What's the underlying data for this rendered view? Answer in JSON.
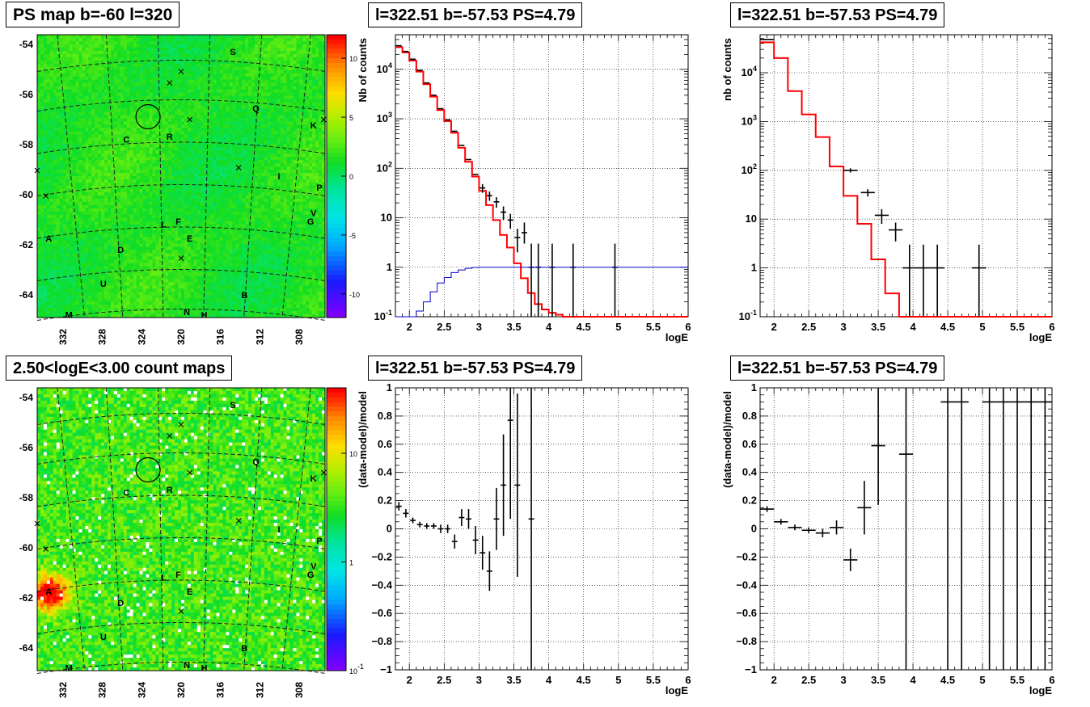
{
  "titles": {
    "map1": "PS map b=-60 l=320",
    "map2": "2.50<logE<3.00 count maps",
    "spec_full": "l=322.51 b=-57.53 PS=4.79",
    "spec_binned": "l=322.51 b=-57.53 PS=4.79",
    "res_full": "l=322.51 b=-57.53 PS=4.79",
    "res_binned": "l=322.51 b=-57.53 PS=4.79"
  },
  "chart_data": [
    {
      "type": "heatmap",
      "title": "PS map b=-60 l=320",
      "ylabel_ticks": [
        "-54",
        "-56",
        "-58",
        "-60",
        "-62",
        "-64"
      ],
      "xlabel_ticks": [
        "332",
        "328",
        "324",
        "320",
        "316",
        "312",
        "308"
      ],
      "colorbar_ticks": [
        "10",
        "5",
        "0",
        "-5",
        "-10"
      ],
      "colorbar_range": [
        -12,
        12
      ],
      "source_labels": [
        {
          "label": "S"
        },
        {
          "label": "Q"
        },
        {
          "label": "K"
        },
        {
          "label": "C"
        },
        {
          "label": "R"
        },
        {
          "label": "I"
        },
        {
          "label": "P"
        },
        {
          "label": "V"
        },
        {
          "label": "G"
        },
        {
          "label": "L"
        },
        {
          "label": "F"
        },
        {
          "label": "A"
        },
        {
          "label": "E"
        },
        {
          "label": "D"
        },
        {
          "label": "U"
        },
        {
          "label": "B"
        },
        {
          "label": "N"
        },
        {
          "label": "H"
        },
        {
          "label": "M"
        }
      ]
    },
    {
      "type": "line",
      "title": "l=322.51 b=-57.53 PS=4.79",
      "xlabel": "logE",
      "ylabel": "Nb of counts",
      "xlim": [
        1.8,
        6
      ],
      "ylim": [
        0.1,
        50000
      ],
      "ylog": true,
      "grid": true,
      "x_ticks": [
        "2",
        "2.5",
        "3",
        "3.5",
        "4",
        "4.5",
        "5",
        "5.5",
        "6"
      ],
      "y_ticks": [
        "10^{-1}",
        "1",
        "10",
        "10^{2}",
        "10^{3}",
        "10^{4}"
      ],
      "series": [
        {
          "role": "model-red-step",
          "color": "#ff0000",
          "edges": [
            1.8,
            1.9,
            2.0,
            2.1,
            2.2,
            2.3,
            2.4,
            2.5,
            2.6,
            2.7,
            2.8,
            2.9,
            3.0,
            3.1,
            3.2,
            3.3,
            3.4,
            3.5,
            3.6,
            3.7,
            3.8,
            3.9,
            4.0,
            4.1,
            4.2,
            4.3,
            6.0
          ],
          "values": [
            28000,
            22000,
            15000,
            9000,
            5000,
            2800,
            1500,
            900,
            520,
            260,
            135,
            68,
            35,
            18,
            9,
            4.5,
            2.5,
            1.2,
            0.6,
            0.3,
            0.18,
            0.14,
            0.12,
            0.11,
            0.1,
            0.1
          ]
        },
        {
          "role": "data-points",
          "color": "#000000",
          "x": [
            1.85,
            1.95,
            2.05,
            2.15,
            2.25,
            2.35,
            2.45,
            2.55,
            2.65,
            2.75,
            2.85,
            2.95,
            3.05,
            3.15,
            3.25,
            3.35,
            3.45,
            3.55,
            3.65,
            3.75,
            3.85,
            4.05,
            4.35,
            4.95
          ],
          "y": [
            30000,
            23000,
            16000,
            9500,
            5300,
            3000,
            1600,
            950,
            560,
            290,
            150,
            75,
            40,
            28,
            21,
            13,
            9,
            4,
            5,
            1,
            1,
            1,
            1,
            1
          ],
          "yerr_lo": [
            0,
            0,
            0,
            0,
            0,
            0,
            0,
            0,
            0,
            0,
            0,
            0,
            8,
            6,
            5,
            4,
            3,
            2,
            2,
            0.9,
            0.9,
            0.9,
            0.9,
            0.9
          ],
          "yerr_hi": [
            0,
            0,
            0,
            0,
            0,
            0,
            0,
            0,
            0,
            0,
            0,
            0,
            8,
            6,
            5,
            4,
            3,
            2,
            3,
            2,
            2,
            2,
            2,
            2
          ]
        },
        {
          "role": "efficiency-blue-step",
          "color": "#0000cc",
          "edges": [
            1.8,
            2.0,
            2.1,
            2.2,
            2.3,
            2.4,
            2.5,
            2.6,
            2.7,
            2.8,
            2.9,
            3.0,
            3.1,
            6.0
          ],
          "values": [
            0.1,
            0.1,
            0.13,
            0.2,
            0.32,
            0.48,
            0.62,
            0.78,
            0.88,
            0.95,
            0.99,
            1.0,
            1.0
          ]
        }
      ]
    },
    {
      "type": "line",
      "title": "l=322.51 b=-57.53 PS=4.79",
      "xlabel": "logE",
      "ylabel": "nb of counts",
      "xlim": [
        1.8,
        6
      ],
      "ylim": [
        0.1,
        60000
      ],
      "ylog": true,
      "grid": true,
      "x_ticks": [
        "2",
        "2.5",
        "3",
        "3.5",
        "4",
        "4.5",
        "5",
        "5.5",
        "6"
      ],
      "y_ticks": [
        "10^{-1}",
        "1",
        "10",
        "10^{2}",
        "10^{3}",
        "10^{4}"
      ],
      "series": [
        {
          "role": "model-red-step",
          "color": "#ff0000",
          "edges": [
            1.8,
            2.0,
            2.2,
            2.4,
            2.6,
            2.8,
            3.0,
            3.2,
            3.4,
            3.6,
            3.8,
            4.0,
            4.2,
            6.0
          ],
          "values": [
            42000,
            20000,
            4200,
            1400,
            480,
            120,
            30,
            8,
            1.5,
            0.3,
            0.1,
            0.1,
            0.1
          ]
        },
        {
          "role": "data-points",
          "color": "#000000",
          "x": [
            1.9,
            3.1,
            3.35,
            3.55,
            3.75,
            3.95,
            4.15,
            4.35,
            4.95
          ],
          "xerr": [
            0.1,
            0.1,
            0.1,
            0.1,
            0.1,
            0.1,
            0.1,
            0.1,
            0.1
          ],
          "y": [
            48000,
            100,
            35,
            12,
            6,
            1,
            1,
            1,
            1
          ],
          "yerr_lo": [
            0,
            10,
            6,
            4,
            2.5,
            0.9,
            0.9,
            0.9,
            0.9
          ],
          "yerr_hi": [
            0,
            10,
            6,
            4,
            2.5,
            2,
            2,
            2,
            2
          ]
        }
      ]
    },
    {
      "type": "heatmap",
      "title": "2.50<logE<3.00 count maps",
      "ylabel_ticks": [
        "-54",
        "-56",
        "-58",
        "-60",
        "-62",
        "-64"
      ],
      "xlabel_ticks": [
        "332",
        "328",
        "324",
        "320",
        "316",
        "312",
        "308"
      ],
      "colorbar_ticks": [
        "10",
        "1",
        "10^{-1}"
      ],
      "colorbar_log": true,
      "colorbar_range": [
        0.1,
        40
      ]
    },
    {
      "type": "scatter",
      "title": "l=322.51 b=-57.53 PS=4.79",
      "xlabel": "logE",
      "ylabel": "(data-model)/model",
      "xlim": [
        1.8,
        6
      ],
      "ylim": [
        -1,
        1
      ],
      "grid": true,
      "x_ticks": [
        "2",
        "2.5",
        "3",
        "3.5",
        "4",
        "4.5",
        "5",
        "5.5",
        "6"
      ],
      "y_ticks": [
        "−1",
        "−0.8",
        "−0.6",
        "−0.4",
        "−0.2",
        "0",
        "0.2",
        "0.4",
        "0.6",
        "0.8",
        "1"
      ],
      "series": [
        {
          "role": "residuals",
          "color": "#000000",
          "x": [
            1.85,
            1.95,
            2.05,
            2.15,
            2.25,
            2.35,
            2.45,
            2.55,
            2.65,
            2.75,
            2.85,
            2.95,
            3.05,
            3.15,
            3.25,
            3.35,
            3.45,
            3.55,
            3.75
          ],
          "y": [
            0.16,
            0.11,
            0.06,
            0.03,
            0.02,
            0.02,
            0.0,
            0.0,
            -0.09,
            0.08,
            0.07,
            -0.08,
            -0.17,
            -0.3,
            0.07,
            0.31,
            0.77,
            0.31,
            0.07
          ],
          "yerr": [
            0.03,
            0.03,
            0.02,
            0.02,
            0.02,
            0.02,
            0.03,
            0.03,
            0.05,
            0.06,
            0.07,
            0.1,
            0.12,
            0.14,
            0.22,
            0.36,
            0.7,
            0.65,
            1.2
          ]
        }
      ]
    },
    {
      "type": "scatter",
      "title": "l=322.51 b=-57.53 PS=4.79",
      "xlabel": "logE",
      "ylabel": "(data-model)/model",
      "xlim": [
        1.8,
        6
      ],
      "ylim": [
        -1,
        1
      ],
      "grid": true,
      "x_ticks": [
        "2",
        "2.5",
        "3",
        "3.5",
        "4",
        "4.5",
        "5",
        "5.5",
        "6"
      ],
      "y_ticks": [
        "−1",
        "−0.8",
        "−0.6",
        "−0.4",
        "−0.2",
        "0",
        "0.2",
        "0.4",
        "0.6",
        "0.8",
        "1"
      ],
      "series": [
        {
          "role": "residuals",
          "color": "#000000",
          "x": [
            1.9,
            2.1,
            2.3,
            2.5,
            2.7,
            2.9,
            3.1,
            3.3,
            3.5,
            3.9,
            4.5,
            4.7,
            5.1,
            5.3,
            5.5,
            5.7,
            5.9
          ],
          "xerr": 0.1,
          "y": [
            0.14,
            0.05,
            0.01,
            -0.01,
            -0.03,
            0.01,
            -0.22,
            0.15,
            0.59,
            0.53,
            0.9,
            0.9,
            0.9,
            0.9,
            0.9,
            0.9,
            0.9
          ],
          "yerr": [
            0.02,
            0.02,
            0.02,
            0.02,
            0.03,
            0.05,
            0.08,
            0.19,
            0.42,
            1.6,
            2,
            2,
            2,
            2,
            2,
            2,
            2
          ]
        }
      ]
    }
  ]
}
